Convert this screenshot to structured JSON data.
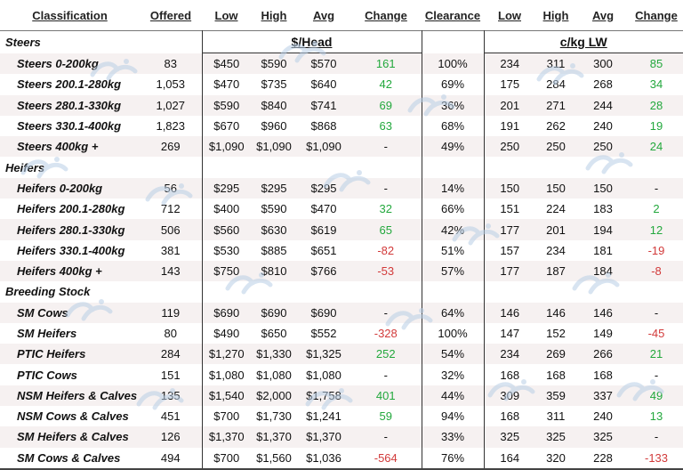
{
  "header": {
    "classification": "Classification",
    "offered": "Offered",
    "low": "Low",
    "high": "High",
    "avg": "Avg",
    "change": "Change",
    "clearance": "Clearance",
    "low2": "Low",
    "high2": "High",
    "avg2": "Avg",
    "change2": "Change"
  },
  "units": {
    "head": "$/Head",
    "kg": "c/kg LW"
  },
  "sections": {
    "steers": "Steers",
    "heifers": "Heifers",
    "breeding": "Breeding Stock"
  },
  "rows": [
    {
      "name": "Steers 0-200kg",
      "offered": "83",
      "low": "$450",
      "high": "$590",
      "avg": "$570",
      "change": "161",
      "clearance": "100%",
      "kg_low": "234",
      "kg_high": "311",
      "kg_avg": "300",
      "kg_change": "85"
    },
    {
      "name": "Steers 200.1-280kg",
      "offered": "1,053",
      "low": "$470",
      "high": "$735",
      "avg": "$640",
      "change": "42",
      "clearance": "69%",
      "kg_low": "175",
      "kg_high": "284",
      "kg_avg": "268",
      "kg_change": "34"
    },
    {
      "name": "Steers 280.1-330kg",
      "offered": "1,027",
      "low": "$590",
      "high": "$840",
      "avg": "$741",
      "change": "69",
      "clearance": "36%",
      "kg_low": "201",
      "kg_high": "271",
      "kg_avg": "244",
      "kg_change": "28"
    },
    {
      "name": "Steers 330.1-400kg",
      "offered": "1,823",
      "low": "$670",
      "high": "$960",
      "avg": "$868",
      "change": "63",
      "clearance": "68%",
      "kg_low": "191",
      "kg_high": "262",
      "kg_avg": "240",
      "kg_change": "19"
    },
    {
      "name": "Steers 400kg +",
      "offered": "269",
      "low": "$1,090",
      "high": "$1,090",
      "avg": "$1,090",
      "change": "-",
      "clearance": "49%",
      "kg_low": "250",
      "kg_high": "250",
      "kg_avg": "250",
      "kg_change": "24"
    },
    {
      "name": "Heifers 0-200kg",
      "offered": "56",
      "low": "$295",
      "high": "$295",
      "avg": "$295",
      "change": "-",
      "clearance": "14%",
      "kg_low": "150",
      "kg_high": "150",
      "kg_avg": "150",
      "kg_change": "-"
    },
    {
      "name": "Heifers 200.1-280kg",
      "offered": "712",
      "low": "$400",
      "high": "$590",
      "avg": "$470",
      "change": "32",
      "clearance": "66%",
      "kg_low": "151",
      "kg_high": "224",
      "kg_avg": "183",
      "kg_change": "2"
    },
    {
      "name": "Heifers 280.1-330kg",
      "offered": "506",
      "low": "$560",
      "high": "$630",
      "avg": "$619",
      "change": "65",
      "clearance": "42%",
      "kg_low": "177",
      "kg_high": "201",
      "kg_avg": "194",
      "kg_change": "12"
    },
    {
      "name": "Heifers 330.1-400kg",
      "offered": "381",
      "low": "$530",
      "high": "$885",
      "avg": "$651",
      "change": "-82",
      "clearance": "51%",
      "kg_low": "157",
      "kg_high": "234",
      "kg_avg": "181",
      "kg_change": "-19"
    },
    {
      "name": "Heifers 400kg +",
      "offered": "143",
      "low": "$750",
      "high": "$810",
      "avg": "$766",
      "change": "-53",
      "clearance": "57%",
      "kg_low": "177",
      "kg_high": "187",
      "kg_avg": "184",
      "kg_change": "-8"
    },
    {
      "name": "SM Cows",
      "offered": "119",
      "low": "$690",
      "high": "$690",
      "avg": "$690",
      "change": "-",
      "clearance": "64%",
      "kg_low": "146",
      "kg_high": "146",
      "kg_avg": "146",
      "kg_change": "-"
    },
    {
      "name": "SM Heifers",
      "offered": "80",
      "low": "$490",
      "high": "$650",
      "avg": "$552",
      "change": "-328",
      "clearance": "100%",
      "kg_low": "147",
      "kg_high": "152",
      "kg_avg": "149",
      "kg_change": "-45"
    },
    {
      "name": "PTIC Heifers",
      "offered": "284",
      "low": "$1,270",
      "high": "$1,330",
      "avg": "$1,325",
      "change": "252",
      "clearance": "54%",
      "kg_low": "234",
      "kg_high": "269",
      "kg_avg": "266",
      "kg_change": "21"
    },
    {
      "name": "PTIC Cows",
      "offered": "151",
      "low": "$1,080",
      "high": "$1,080",
      "avg": "$1,080",
      "change": "-",
      "clearance": "32%",
      "kg_low": "168",
      "kg_high": "168",
      "kg_avg": "168",
      "kg_change": "-"
    },
    {
      "name": "NSM Heifers & Calves",
      "offered": "135",
      "low": "$1,540",
      "high": "$2,000",
      "avg": "$1,758",
      "change": "401",
      "clearance": "44%",
      "kg_low": "309",
      "kg_high": "359",
      "kg_avg": "337",
      "kg_change": "49"
    },
    {
      "name": "NSM Cows & Calves",
      "offered": "451",
      "low": "$700",
      "high": "$1,730",
      "avg": "$1,241",
      "change": "59",
      "clearance": "94%",
      "kg_low": "168",
      "kg_high": "311",
      "kg_avg": "240",
      "kg_change": "13"
    },
    {
      "name": "SM Heifers & Calves",
      "offered": "126",
      "low": "$1,370",
      "high": "$1,370",
      "avg": "$1,370",
      "change": "-",
      "clearance": "33%",
      "kg_low": "325",
      "kg_high": "325",
      "kg_avg": "325",
      "kg_change": "-"
    },
    {
      "name": "SM Cows & Calves",
      "offered": "494",
      "low": "$700",
      "high": "$1,560",
      "avg": "$1,036",
      "change": "-564",
      "clearance": "76%",
      "kg_low": "164",
      "kg_high": "320",
      "kg_avg": "228",
      "kg_change": "-133"
    }
  ],
  "colors": {
    "positive": "#23a83d",
    "negative": "#d23a3a",
    "stripe": "#f6f1f1",
    "watermark": "#b9cfe6"
  },
  "icons": {
    "watermark": "cattle-logo-watermark-icon"
  }
}
